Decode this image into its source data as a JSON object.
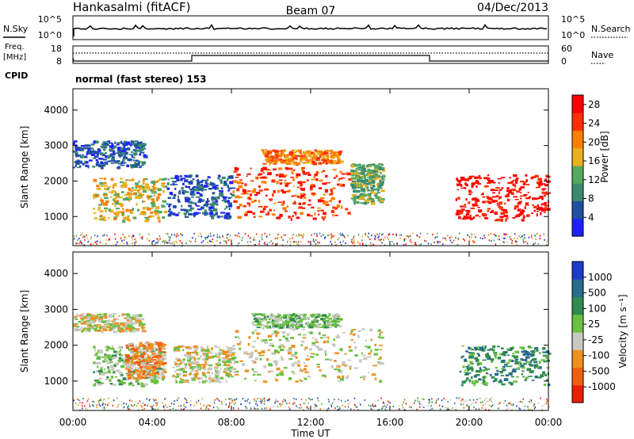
{
  "header": {
    "station": "Hankasalmi (fitACF)",
    "beam": "Beam 07",
    "date": "04/Dec/2013"
  },
  "noise_panel": {
    "left_label": "N.Sky",
    "right_label": "N.Search",
    "ticks_left": [
      "10^5",
      "10^0"
    ],
    "ticks_right": [
      "10^5",
      "10^0"
    ]
  },
  "freq_panel": {
    "left_label_line1": "Freq.",
    "left_label_line2": "[MHz]",
    "right_label": "Nave",
    "ticks_left": [
      "18",
      "8"
    ],
    "ticks_right": [
      "60",
      "0"
    ]
  },
  "cpid": {
    "label": "CPID",
    "text": "normal (fast stereo) 153"
  },
  "chart_data": [
    {
      "type": "heatmap",
      "quantity": "Power",
      "colorbar_label": "Power [dB]",
      "ylabel": "Slant Range [km]",
      "xlabel": "Time UT",
      "x_ticks": [
        "00:00",
        "04:00",
        "08:00",
        "12:00",
        "16:00",
        "20:00",
        "00:00"
      ],
      "xlim_hours": [
        0,
        24
      ],
      "y_ticks": [
        1000,
        2000,
        3000,
        4000
      ],
      "ylim_km": [
        180,
        4600
      ],
      "colorbar_ticks": [
        "4",
        "8",
        "12",
        "16",
        "20",
        "24",
        "28"
      ],
      "colorbar_range": [
        0,
        30
      ],
      "colors": [
        "#2020ff",
        "#2050a0",
        "#3a8a70",
        "#54a860",
        "#e8b020",
        "#ff8000",
        "#ff3000",
        "#ff0000"
      ],
      "regions": [
        {
          "t0": 0.0,
          "t1": 3.6,
          "r0": 2400,
          "r1": 3150,
          "level": 1
        },
        {
          "t0": 1.0,
          "t1": 4.6,
          "r0": 900,
          "r1": 2100,
          "level": 4
        },
        {
          "t0": 4.7,
          "t1": 8.0,
          "r0": 1000,
          "r1": 2200,
          "level": 1
        },
        {
          "t0": 8.0,
          "t1": 13.9,
          "r0": 950,
          "r1": 2400,
          "level": 6
        },
        {
          "t0": 9.5,
          "t1": 13.5,
          "r0": 2500,
          "r1": 2900,
          "level": 5
        },
        {
          "t0": 14.0,
          "t1": 15.6,
          "r0": 1400,
          "r1": 2500,
          "level": 3
        },
        {
          "t0": 19.3,
          "t1": 24.0,
          "r0": 900,
          "r1": 2200,
          "level": 7
        }
      ]
    },
    {
      "type": "heatmap",
      "quantity": "Velocity",
      "colorbar_label": "Velocity [m s⁻¹]",
      "ylabel": "Slant Range [km]",
      "xlabel": "Time UT",
      "x_ticks": [
        "00:00",
        "04:00",
        "08:00",
        "12:00",
        "16:00",
        "20:00",
        "00:00"
      ],
      "xlim_hours": [
        0,
        24
      ],
      "y_ticks": [
        1000,
        2000,
        3000,
        4000
      ],
      "ylim_km": [
        180,
        4600
      ],
      "colorbar_ticks": [
        "1000",
        "500",
        "100",
        "25",
        "-25",
        "-100",
        "-500",
        "-1000"
      ],
      "colors": [
        "#1c3cc8",
        "#2a6c8a",
        "#2e8a4e",
        "#6ac040",
        "#c8c8c0",
        "#f09020",
        "#f06010",
        "#e82000"
      ],
      "regions": [
        {
          "t0": 0.0,
          "t1": 3.5,
          "r0": 2400,
          "r1": 2900,
          "level": 4
        },
        {
          "t0": 1.0,
          "t1": 4.5,
          "r0": 900,
          "r1": 2000,
          "level": 3
        },
        {
          "t0": 2.6,
          "t1": 4.6,
          "r0": 1100,
          "r1": 2100,
          "level": 5
        },
        {
          "t0": 5.0,
          "t1": 8.0,
          "r0": 1000,
          "r1": 2000,
          "level": 4
        },
        {
          "t0": 8.0,
          "t1": 15.5,
          "r0": 1000,
          "r1": 2500,
          "level": 4
        },
        {
          "t0": 9.0,
          "t1": 13.5,
          "r0": 2500,
          "r1": 2900,
          "level": 3
        },
        {
          "t0": 19.5,
          "t1": 24.0,
          "r0": 900,
          "r1": 2000,
          "level": 2
        }
      ]
    }
  ]
}
